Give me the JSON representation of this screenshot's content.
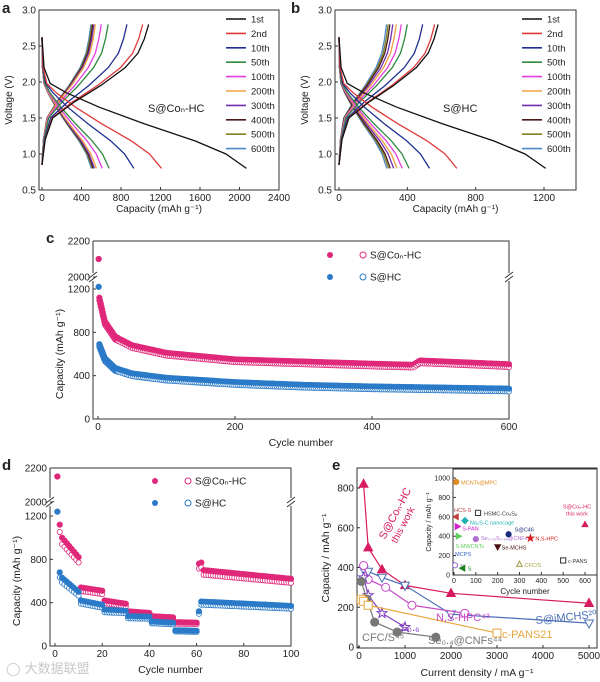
{
  "watermark": "大数据联盟",
  "chart_data": [
    {
      "panel": "a",
      "type": "line",
      "title": "",
      "annotation": "S@Coₙ-HC",
      "xlabel": "Capacity (mAh g⁻¹)",
      "ylabel": "Voltage (V)",
      "xlim": [
        0,
        2400
      ],
      "ylim": [
        0.5,
        3.0
      ],
      "xticks": [
        0,
        400,
        800,
        1200,
        1600,
        2000,
        2400
      ],
      "yticks": [
        0.5,
        1.0,
        1.5,
        2.0,
        2.5,
        3.0
      ],
      "legend_position": "top-right",
      "series": [
        {
          "name": "1st",
          "color": "#111111",
          "discharge_capacity": 2070,
          "charge_capacity": 1080
        },
        {
          "name": "2nd",
          "color": "#e03a3a",
          "discharge_capacity": 1210,
          "charge_capacity": 1020
        },
        {
          "name": "10th",
          "color": "#1f2f8f",
          "discharge_capacity": 930,
          "charge_capacity": 860
        },
        {
          "name": "50th",
          "color": "#2e8b3e",
          "discharge_capacity": 680,
          "charge_capacity": 670
        },
        {
          "name": "100th",
          "color": "#e040e0",
          "discharge_capacity": 610,
          "charge_capacity": 600
        },
        {
          "name": "200th",
          "color": "#f0a040",
          "discharge_capacity": 550,
          "charge_capacity": 540
        },
        {
          "name": "300th",
          "color": "#7030b0",
          "discharge_capacity": 530,
          "charge_capacity": 525
        },
        {
          "name": "400th",
          "color": "#4a1a1a",
          "discharge_capacity": 520,
          "charge_capacity": 515
        },
        {
          "name": "500th",
          "color": "#808020",
          "discharge_capacity": 510,
          "charge_capacity": 505
        },
        {
          "name": "600th",
          "color": "#4a8ac8",
          "discharge_capacity": 500,
          "charge_capacity": 495
        }
      ]
    },
    {
      "panel": "b",
      "type": "line",
      "title": "",
      "annotation": "S@HC",
      "xlabel": "Capacity (mAh g⁻¹)",
      "ylabel": "Voltage (V)",
      "xlim": [
        0,
        1400
      ],
      "ylim": [
        0.5,
        3.0
      ],
      "xticks": [
        0,
        400,
        800,
        1200
      ],
      "yticks": [
        0.5,
        1.0,
        1.5,
        2.0,
        2.5,
        3.0
      ],
      "legend_position": "top-right",
      "series": [
        {
          "name": "1st",
          "color": "#111111",
          "discharge_capacity": 1210,
          "charge_capacity": 580
        },
        {
          "name": "2nd",
          "color": "#e03a3a",
          "discharge_capacity": 690,
          "charge_capacity": 560
        },
        {
          "name": "10th",
          "color": "#1f2f8f",
          "discharge_capacity": 530,
          "charge_capacity": 490
        },
        {
          "name": "50th",
          "color": "#2e8b3e",
          "discharge_capacity": 410,
          "charge_capacity": 400
        },
        {
          "name": "100th",
          "color": "#e040e0",
          "discharge_capacity": 370,
          "charge_capacity": 365
        },
        {
          "name": "200th",
          "color": "#f0a040",
          "discharge_capacity": 340,
          "charge_capacity": 335
        },
        {
          "name": "300th",
          "color": "#7030b0",
          "discharge_capacity": 320,
          "charge_capacity": 315
        },
        {
          "name": "400th",
          "color": "#4a1a1a",
          "discharge_capacity": 300,
          "charge_capacity": 298
        },
        {
          "name": "500th",
          "color": "#808020",
          "discharge_capacity": 290,
          "charge_capacity": 288
        },
        {
          "name": "600th",
          "color": "#4a8ac8",
          "discharge_capacity": 280,
          "charge_capacity": 278
        }
      ]
    },
    {
      "panel": "c",
      "type": "scatter",
      "xlabel": "Cycle number",
      "ylabel": "Capacity (mAh g⁻¹)",
      "xlim": [
        0,
        600
      ],
      "ylim": [
        0,
        2200
      ],
      "y_break": [
        1300,
        2000
      ],
      "xticks": [
        0,
        200,
        400,
        600
      ],
      "yticks": [
        0,
        400,
        800,
        1200,
        2000,
        2200
      ],
      "legend_position": "top-right",
      "series": [
        {
          "name": "S@Coₙ-HC",
          "color": "#e0287a",
          "discharge": [
            [
              1,
              2100
            ],
            [
              2,
              1120
            ],
            [
              10,
              900
            ],
            [
              25,
              760
            ],
            [
              50,
              680
            ],
            [
              100,
              610
            ],
            [
              200,
              550
            ],
            [
              300,
              530
            ],
            [
              400,
              510
            ],
            [
              460,
              500
            ],
            [
              470,
              540
            ],
            [
              600,
              505
            ]
          ],
          "charge_offset": -25
        },
        {
          "name": "S@HC",
          "color": "#2a7ac8",
          "discharge": [
            [
              1,
              1220
            ],
            [
              2,
              690
            ],
            [
              10,
              560
            ],
            [
              25,
              470
            ],
            [
              50,
              420
            ],
            [
              100,
              380
            ],
            [
              200,
              340
            ],
            [
              300,
              315
            ],
            [
              400,
              300
            ],
            [
              600,
              280
            ]
          ],
          "charge_offset": -25
        }
      ]
    },
    {
      "panel": "d",
      "type": "scatter",
      "xlabel": "Cycle number",
      "ylabel": "Capacity (mAh g⁻¹)",
      "xlim": [
        0,
        100
      ],
      "ylim": [
        0,
        2200
      ],
      "y_break": [
        1300,
        2000
      ],
      "xticks": [
        0,
        20,
        40,
        60,
        80,
        100
      ],
      "yticks": [
        0,
        400,
        800,
        1200,
        2000,
        2200
      ],
      "legend_position": "top-center",
      "series": [
        {
          "name": "S@Coₙ-HC",
          "color": "#e0287a",
          "discharge_segments": [
            [
              1,
              1,
              2150,
              2150
            ],
            [
              2,
              2,
              1120,
              1120
            ],
            [
              3,
              10,
              1000,
              820
            ],
            [
              11,
              20,
              540,
              510
            ],
            [
              21,
              30,
              420,
              390
            ],
            [
              31,
              40,
              320,
              305
            ],
            [
              41,
              50,
              275,
              265
            ],
            [
              51,
              60,
              220,
              215
            ],
            [
              61,
              62,
              760,
              770
            ],
            [
              63,
              100,
              700,
              620
            ]
          ],
          "charge_factor": 0.94
        },
        {
          "name": "S@HC",
          "color": "#2a7ac8",
          "discharge_segments": [
            [
              1,
              1,
              1240,
              1240
            ],
            [
              2,
              2,
              680,
              680
            ],
            [
              3,
              10,
              630,
              500
            ],
            [
              11,
              20,
              420,
              380
            ],
            [
              21,
              30,
              335,
              325
            ],
            [
              31,
              40,
              275,
              270
            ],
            [
              41,
              50,
              225,
              215
            ],
            [
              51,
              60,
              145,
              140
            ],
            [
              61,
              61,
              320,
              320
            ],
            [
              62,
              100,
              410,
              370
            ]
          ],
          "charge_factor": 0.93
        }
      ]
    },
    {
      "panel": "e",
      "type": "line",
      "xlabel": "Current density / mA g⁻¹",
      "ylabel": "Capacity / mAh g⁻¹",
      "xlim": [
        0,
        5000
      ],
      "ylim": [
        0,
        900
      ],
      "xticks": [
        0,
        1000,
        2000,
        3000,
        4000,
        5000
      ],
      "yticks": [
        0,
        200,
        400,
        600,
        800
      ],
      "series": [
        {
          "name": "S@Coₙ-HC",
          "note": "this work",
          "color": "#d81b60",
          "marker": "triangle",
          "filled": true,
          "points": [
            [
              100,
              820
            ],
            [
              200,
              500
            ],
            [
              500,
              390
            ],
            [
              1000,
              310
            ],
            [
              2000,
              270
            ],
            [
              5000,
              220
            ]
          ]
        },
        {
          "name": "S@iMCHS²⁰",
          "color": "#4a6fb5",
          "marker": "triangle-down",
          "filled": false,
          "points": [
            [
              100,
              390
            ],
            [
              200,
              380
            ],
            [
              500,
              350
            ],
            [
              1000,
              310
            ],
            [
              2000,
              165
            ],
            [
              5000,
              120
            ]
          ]
        },
        {
          "name": "N,S-HPC⁴³",
          "color": "#c848c8",
          "marker": "circle",
          "filled": false,
          "points": [
            [
              100,
              410
            ],
            [
              200,
              340
            ],
            [
              580,
              300
            ],
            [
              1150,
              210
            ],
            [
              2300,
              170
            ]
          ]
        },
        {
          "name": "S₀.₆",
          "color": "#8040c0",
          "marker": "star",
          "filled": false,
          "points": [
            [
              100,
              350
            ],
            [
              200,
              260
            ],
            [
              500,
              170
            ],
            [
              1000,
              100
            ]
          ]
        },
        {
          "name": "Se₀.₄@CNFs⁴⁴",
          "color": "#777777",
          "marker": "circle",
          "filled": true,
          "points": [
            [
              830,
              75
            ],
            [
              1670,
              50
            ]
          ]
        },
        {
          "name": "CFC/S⁴⁵",
          "color": "#777777",
          "marker": "circle",
          "filled": true,
          "points": [
            [
              50,
              330
            ],
            [
              170,
              240
            ],
            [
              340,
              125
            ],
            [
              830,
              75
            ]
          ]
        },
        {
          "name": "c-PANS21",
          "color": "#e8a840",
          "marker": "square",
          "filled": false,
          "points": [
            [
              50,
              240
            ],
            [
              100,
              230
            ],
            [
              200,
              210
            ],
            [
              3000,
              70
            ]
          ]
        }
      ],
      "inset": {
        "xlabel": "Cycle number",
        "ylabel": "Capacity / mAh g⁻¹",
        "xlim": [
          0,
          600
        ],
        "ylim": [
          0,
          1000
        ],
        "xticks": [
          0,
          100,
          200,
          300,
          400,
          500,
          600
        ],
        "yticks": [
          0,
          200,
          400,
          600,
          800,
          1000
        ],
        "points": [
          {
            "label": "MCNTs@MPC",
            "x": 10,
            "y": 960,
            "color": "#e08a20",
            "marker": "circle",
            "filled": true
          },
          {
            "label": "HCS-S",
            "x": 10,
            "y": 600,
            "color": "#c04040",
            "marker": "triangle-left",
            "filled": true
          },
          {
            "label": "HSMC-Co₉S₈",
            "x": 110,
            "y": 640,
            "color": "#333333",
            "marker": "square",
            "filled": false
          },
          {
            "label": "Na₂S-C nanocage",
            "x": 50,
            "y": 560,
            "color": "#20b0b0",
            "marker": "diamond",
            "filled": true
          },
          {
            "label": "S-PAN",
            "x": 15,
            "y": 500,
            "color": "#d020d0",
            "marker": "triangle-right",
            "filled": true
          },
          {
            "label": "S-MWCNTs",
            "x": 20,
            "y": 400,
            "color": "#60d060",
            "marker": "triangle-right",
            "filled": true
          },
          {
            "label": "Se₀.₀₆S₀.₉₄@CNFs",
            "x": 100,
            "y": 370,
            "color": "#b070d0",
            "marker": "circle",
            "filled": true
          },
          {
            "label": "S@C46",
            "x": 250,
            "y": 420,
            "color": "#1a2a7a",
            "marker": "circle",
            "filled": true
          },
          {
            "label": "N,S-HPC",
            "x": 350,
            "y": 380,
            "color": "#d02020",
            "marker": "star",
            "filled": true
          },
          {
            "label": "Se-MCHS",
            "x": 200,
            "y": 290,
            "color": "#4a1010",
            "marker": "triangle-down",
            "filled": true
          },
          {
            "label": "MCPS",
            "x": 10,
            "y": 220,
            "color": "#3060c0",
            "marker": "none",
            "filled": false
          },
          {
            "label": "S",
            "x": 5,
            "y": 100,
            "color": "#9070d0",
            "marker": "circle",
            "filled": false
          },
          {
            "label": "S",
            "x": 40,
            "y": 70,
            "color": "#208020",
            "marker": "triangle-left",
            "filled": true
          },
          {
            "label": "CFC/S",
            "x": 300,
            "y": 110,
            "color": "#a0a040",
            "marker": "triangle",
            "filled": false
          },
          {
            "label": "c-PANS",
            "x": 500,
            "y": 150,
            "color": "#333333",
            "marker": "square",
            "filled": false
          },
          {
            "label": "S@Coₙ-HC this work",
            "x": 600,
            "y": 520,
            "color": "#d81b60",
            "marker": "triangle",
            "filled": true
          }
        ]
      }
    }
  ],
  "panel_letters": [
    "a",
    "b",
    "c",
    "d",
    "e"
  ]
}
